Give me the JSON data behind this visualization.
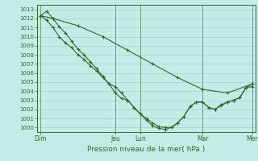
{
  "title": "",
  "xlabel": "Pression niveau de la mer( hPa )",
  "ylabel": "",
  "bg_color": "#c5ebe6",
  "grid_color": "#9dd4ce",
  "line_color": "#2d6a2d",
  "ylim": [
    999.5,
    1013.5
  ],
  "yticks": [
    1000,
    1001,
    1002,
    1003,
    1004,
    1005,
    1006,
    1007,
    1008,
    1009,
    1010,
    1011,
    1012,
    1013
  ],
  "day_labels": [
    "Dim",
    "Jeu",
    "Lun",
    "Mar",
    "Mer"
  ],
  "day_positions": [
    0,
    12,
    16,
    26,
    34
  ],
  "total_points": 35,
  "line1_x": [
    0,
    1,
    2,
    3,
    4,
    5,
    6,
    7,
    8,
    9,
    10,
    11,
    12,
    13,
    14,
    15,
    16,
    17,
    18,
    19,
    20,
    21,
    22,
    23,
    24,
    25,
    26,
    27,
    28,
    29,
    30,
    31,
    32,
    33,
    34
  ],
  "line1_y": [
    1012.3,
    1012.8,
    1012.0,
    1011.1,
    1010.4,
    1009.5,
    1008.6,
    1008.0,
    1007.2,
    1006.5,
    1005.6,
    1004.8,
    1003.8,
    1003.2,
    1003.0,
    1002.2,
    1001.5,
    1001.0,
    1000.5,
    1000.1,
    1000.0,
    1000.0,
    1000.5,
    1001.2,
    1002.3,
    1002.8,
    1002.8,
    1002.2,
    1002.0,
    1002.5,
    1002.8,
    1003.0,
    1003.3,
    1004.4,
    1004.5
  ],
  "line2_x": [
    0,
    1,
    2,
    3,
    4,
    5,
    6,
    7,
    8,
    9,
    10,
    11,
    12,
    13,
    14,
    15,
    16,
    17,
    18,
    19,
    20,
    21,
    22,
    23,
    24,
    25,
    26,
    27,
    28,
    29,
    30,
    31,
    32,
    33,
    34
  ],
  "line2_y": [
    1012.3,
    1011.8,
    1011.0,
    1010.0,
    1009.3,
    1008.8,
    1008.0,
    1007.5,
    1006.8,
    1006.2,
    1005.5,
    1004.8,
    1004.5,
    1003.8,
    1003.0,
    1002.2,
    1001.5,
    1000.8,
    1000.2,
    999.9,
    999.8,
    1000.0,
    1000.5,
    1001.2,
    1002.3,
    1002.8,
    1002.8,
    1002.2,
    1002.0,
    1002.4,
    1002.8,
    1003.0,
    1003.3,
    1004.4,
    1004.8
  ],
  "line3_x": [
    0,
    2,
    6,
    10,
    14,
    18,
    22,
    26,
    30,
    34
  ],
  "line3_y": [
    1012.3,
    1012.0,
    1011.2,
    1010.0,
    1008.5,
    1007.0,
    1005.5,
    1004.2,
    1003.8,
    1004.8
  ]
}
